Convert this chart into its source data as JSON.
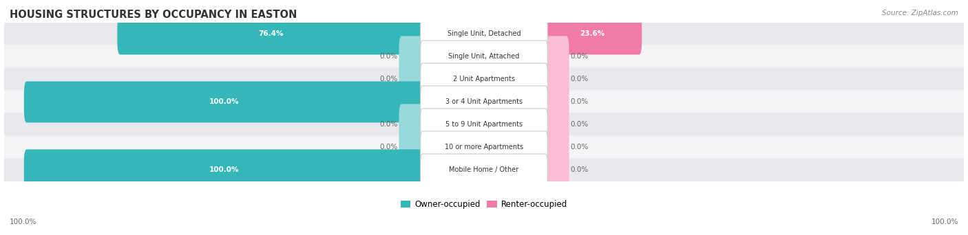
{
  "title": "HOUSING STRUCTURES BY OCCUPANCY IN EASTON",
  "source": "Source: ZipAtlas.com",
  "categories": [
    "Single Unit, Detached",
    "Single Unit, Attached",
    "2 Unit Apartments",
    "3 or 4 Unit Apartments",
    "5 to 9 Unit Apartments",
    "10 or more Apartments",
    "Mobile Home / Other"
  ],
  "owner_values": [
    76.4,
    0.0,
    0.0,
    100.0,
    0.0,
    0.0,
    100.0
  ],
  "renter_values": [
    23.6,
    0.0,
    0.0,
    0.0,
    0.0,
    0.0,
    0.0
  ],
  "owner_color": "#35b6b8",
  "renter_color": "#f07aa8",
  "owner_color_light": "#99d9da",
  "renter_color_light": "#f9bdd5",
  "row_bg_colors": [
    "#e9e9ed",
    "#f4f4f6"
  ],
  "label_color": "#333333",
  "title_color": "#333333",
  "source_color": "#888888",
  "axis_label_color": "#666666",
  "legend_label_owner": "Owner-occupied",
  "legend_label_renter": "Renter-occupied",
  "max_value": 100.0,
  "figsize": [
    14.06,
    3.42
  ],
  "dpi": 100
}
